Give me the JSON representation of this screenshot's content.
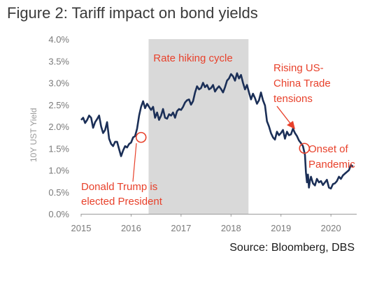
{
  "title": "Figure 2: Tariff impact on bond yields",
  "source": "Source: Bloomberg, DBS",
  "colors": {
    "line": "#1b2f57",
    "shade": "#d9d9d9",
    "annotation": "#e8412b",
    "axis": "#7a7a7a"
  },
  "chart_data": {
    "type": "line",
    "title": "Figure 2: Tariff impact on bond yields",
    "xlabel": "",
    "ylabel": "10Y UST Yield",
    "xlim": [
      2015,
      2020.6
    ],
    "ylim": [
      0.0,
      4.0
    ],
    "x_tick_labels": [
      "2015",
      "2016",
      "2017",
      "2018",
      "2019",
      "2020"
    ],
    "x_ticks": [
      2015,
      2016,
      2017,
      2018,
      2019,
      2020
    ],
    "y_tick_labels": [
      "0.0%",
      "0.5%",
      "1.0%",
      "1.5%",
      "2.0%",
      "2.5%",
      "3.0%",
      "3.5%",
      "4.0%"
    ],
    "y_ticks": [
      0.0,
      0.5,
      1.0,
      1.5,
      2.0,
      2.5,
      3.0,
      3.5,
      4.0
    ],
    "grid": false,
    "shaded_region": {
      "label": "Rate hiking cycle",
      "x_start": 2016.35,
      "x_end": 2018.35
    },
    "series": [
      {
        "x": [
          2015.0,
          2015.04,
          2015.08,
          2015.12,
          2015.16,
          2015.2,
          2015.24,
          2015.28,
          2015.32,
          2015.36,
          2015.4,
          2015.44,
          2015.48,
          2015.52,
          2015.56,
          2015.6,
          2015.64,
          2015.68,
          2015.72,
          2015.76,
          2015.8,
          2015.84,
          2015.88,
          2015.92,
          2015.96,
          2016.0,
          2016.04,
          2016.08,
          2016.12,
          2016.16,
          2016.2,
          2016.24,
          2016.28,
          2016.32,
          2016.36,
          2016.4,
          2016.44,
          2016.48,
          2016.52,
          2016.56,
          2016.6,
          2016.64,
          2016.68,
          2016.72,
          2016.76,
          2016.8,
          2016.84,
          2016.88,
          2016.92,
          2016.96,
          2017.0,
          2017.04,
          2017.08,
          2017.12,
          2017.16,
          2017.2,
          2017.24,
          2017.28,
          2017.32,
          2017.36,
          2017.4,
          2017.44,
          2017.48,
          2017.52,
          2017.56,
          2017.6,
          2017.64,
          2017.68,
          2017.72,
          2017.76,
          2017.8,
          2017.84,
          2017.88,
          2017.92,
          2017.96,
          2018.0,
          2018.04,
          2018.08,
          2018.12,
          2018.16,
          2018.2,
          2018.24,
          2018.28,
          2018.32,
          2018.36,
          2018.4,
          2018.44,
          2018.48,
          2018.52,
          2018.56,
          2018.6,
          2018.64,
          2018.68,
          2018.72,
          2018.76,
          2018.8,
          2018.84,
          2018.88,
          2018.92,
          2018.96,
          2019.0,
          2019.04,
          2019.08,
          2019.12,
          2019.16,
          2019.2,
          2019.24,
          2019.28,
          2019.32,
          2019.36,
          2019.4,
          2019.44,
          2019.48,
          2019.5,
          2019.52,
          2019.54,
          2019.56,
          2019.58,
          2019.6,
          2019.64,
          2019.68,
          2019.72,
          2019.76,
          2019.8,
          2019.84,
          2019.88,
          2019.92,
          2019.96,
          2020.0,
          2020.04,
          2020.08,
          2020.12,
          2020.16,
          2020.2,
          2020.24,
          2020.28,
          2020.32,
          2020.36,
          2020.4,
          2020.44
        ],
        "y": [
          2.15,
          2.2,
          2.08,
          2.15,
          2.25,
          2.2,
          1.97,
          2.1,
          2.17,
          2.25,
          2.0,
          1.85,
          1.92,
          2.1,
          1.72,
          1.6,
          1.55,
          1.65,
          1.65,
          1.48,
          1.32,
          1.45,
          1.55,
          1.52,
          1.6,
          1.63,
          1.75,
          1.78,
          1.95,
          2.25,
          2.45,
          2.58,
          2.42,
          2.52,
          2.45,
          2.38,
          2.45,
          2.2,
          2.32,
          2.15,
          2.25,
          2.4,
          2.2,
          2.18,
          2.28,
          2.25,
          2.32,
          2.2,
          2.35,
          2.4,
          2.38,
          2.45,
          2.55,
          2.6,
          2.62,
          2.5,
          2.58,
          2.78,
          2.92,
          2.85,
          2.88,
          3.0,
          2.9,
          2.95,
          2.85,
          2.88,
          2.95,
          2.8,
          2.87,
          2.92,
          2.86,
          2.78,
          2.9,
          3.05,
          3.1,
          3.2,
          3.15,
          3.05,
          3.22,
          3.1,
          3.18,
          3.0,
          2.85,
          2.95,
          2.78,
          2.62,
          2.75,
          2.65,
          2.52,
          2.6,
          2.78,
          2.6,
          2.48,
          2.12,
          2.0,
          1.85,
          1.75,
          1.7,
          1.88,
          1.8,
          1.85,
          1.92,
          1.72,
          1.88,
          1.8,
          1.82,
          1.95,
          1.85,
          1.78,
          1.68,
          1.62,
          1.55,
          1.35,
          0.95,
          0.72,
          0.9,
          0.6,
          0.75,
          0.85,
          0.7,
          0.65,
          0.8,
          0.72,
          0.75,
          0.66,
          0.72,
          0.78,
          0.6,
          0.58,
          0.68,
          0.7,
          0.75,
          0.85,
          0.8,
          0.88,
          0.92,
          0.96,
          1.0,
          1.12,
          1.08
        ]
      }
    ],
    "annotations": [
      {
        "text": "Rate hiking cycle"
      },
      {
        "text": "Rising US-China Trade tensions"
      },
      {
        "text": "Onset of Pandemic"
      },
      {
        "text": "Donald Trump is elected President"
      }
    ],
    "markers": [
      {
        "x": 2016.2,
        "y": 1.75
      },
      {
        "x": 2019.47,
        "y": 1.5
      }
    ]
  },
  "labels": {
    "hiking": "Rate hiking cycle",
    "trade_1": "Rising US-",
    "trade_2": "China Trade",
    "trade_3": "tensions",
    "pandemic_1": "Onset of",
    "pandemic_2": "Pandemic",
    "trump_1": "Donald Trump is",
    "trump_2": "elected President"
  }
}
